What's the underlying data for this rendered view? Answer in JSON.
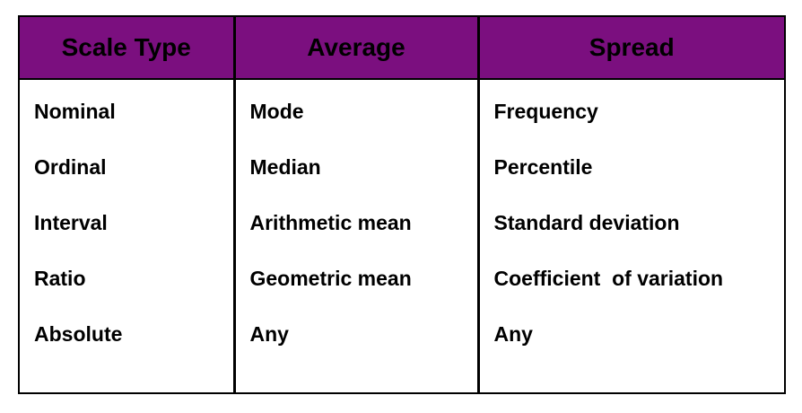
{
  "table": {
    "headers": [
      "Scale Type",
      "Average",
      "Spread"
    ],
    "header_bg": "#7b0f7f",
    "columns": [
      [
        "Nominal",
        "Ordinal",
        "Interval",
        "Ratio",
        "Absolute"
      ],
      [
        "Mode",
        "Median",
        "Arithmetic mean",
        "Geometric mean",
        "Any"
      ],
      [
        "Frequency",
        "Percentile",
        "Standard deviation",
        "Coefficient  of variation",
        "Any"
      ]
    ]
  }
}
